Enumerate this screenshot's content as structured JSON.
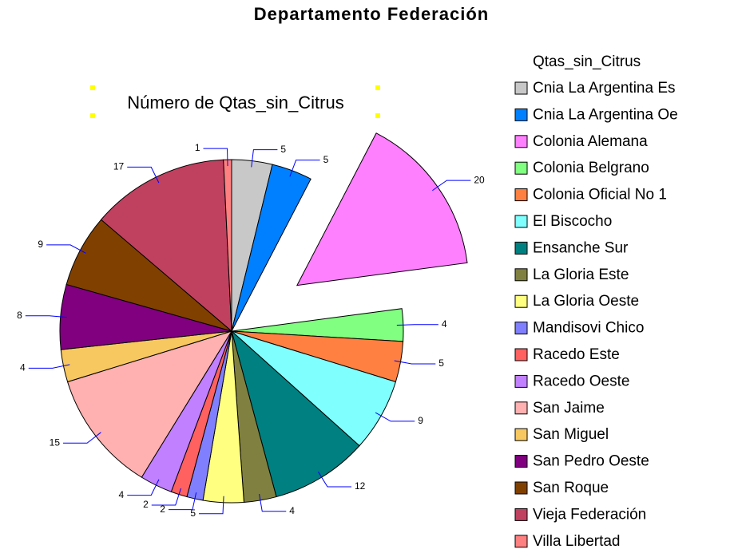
{
  "header": {
    "title": "Departamento Federación"
  },
  "chart_data": {
    "type": "pie",
    "title": "Número de Qtas_sin_Citrus",
    "legend_title": "Qtas_sin_Citrus",
    "categories": [
      "Cnia La Argentina Es",
      "Cnia La Argentina Oe",
      "Colonia Alemana",
      "Colonia Belgrano",
      "Colonia Oficial No 1",
      "El Biscocho",
      "Ensanche Sur",
      "La Gloria Este",
      "La Gloria Oeste",
      "Mandisovi Chico",
      "Racedo Este",
      "Racedo Oeste",
      "San Jaime",
      "San Miguel",
      "San Pedro Oeste",
      "San Roque",
      "Vieja Federación",
      "Villa Libertad"
    ],
    "values": [
      5,
      5,
      20,
      4,
      5,
      9,
      12,
      4,
      5,
      2,
      2,
      4,
      15,
      4,
      8,
      9,
      17,
      1
    ],
    "colors": [
      "#c8c8c8",
      "#0080ff",
      "#ff80ff",
      "#80ff80",
      "#ff8040",
      "#80ffff",
      "#008080",
      "#808040",
      "#ffff80",
      "#8080ff",
      "#ff6060",
      "#c080ff",
      "#ffb0b0",
      "#f8c860",
      "#800080",
      "#804000",
      "#c04060",
      "#ff8080"
    ],
    "explode": "Colonia Alemana",
    "legend": "right"
  }
}
